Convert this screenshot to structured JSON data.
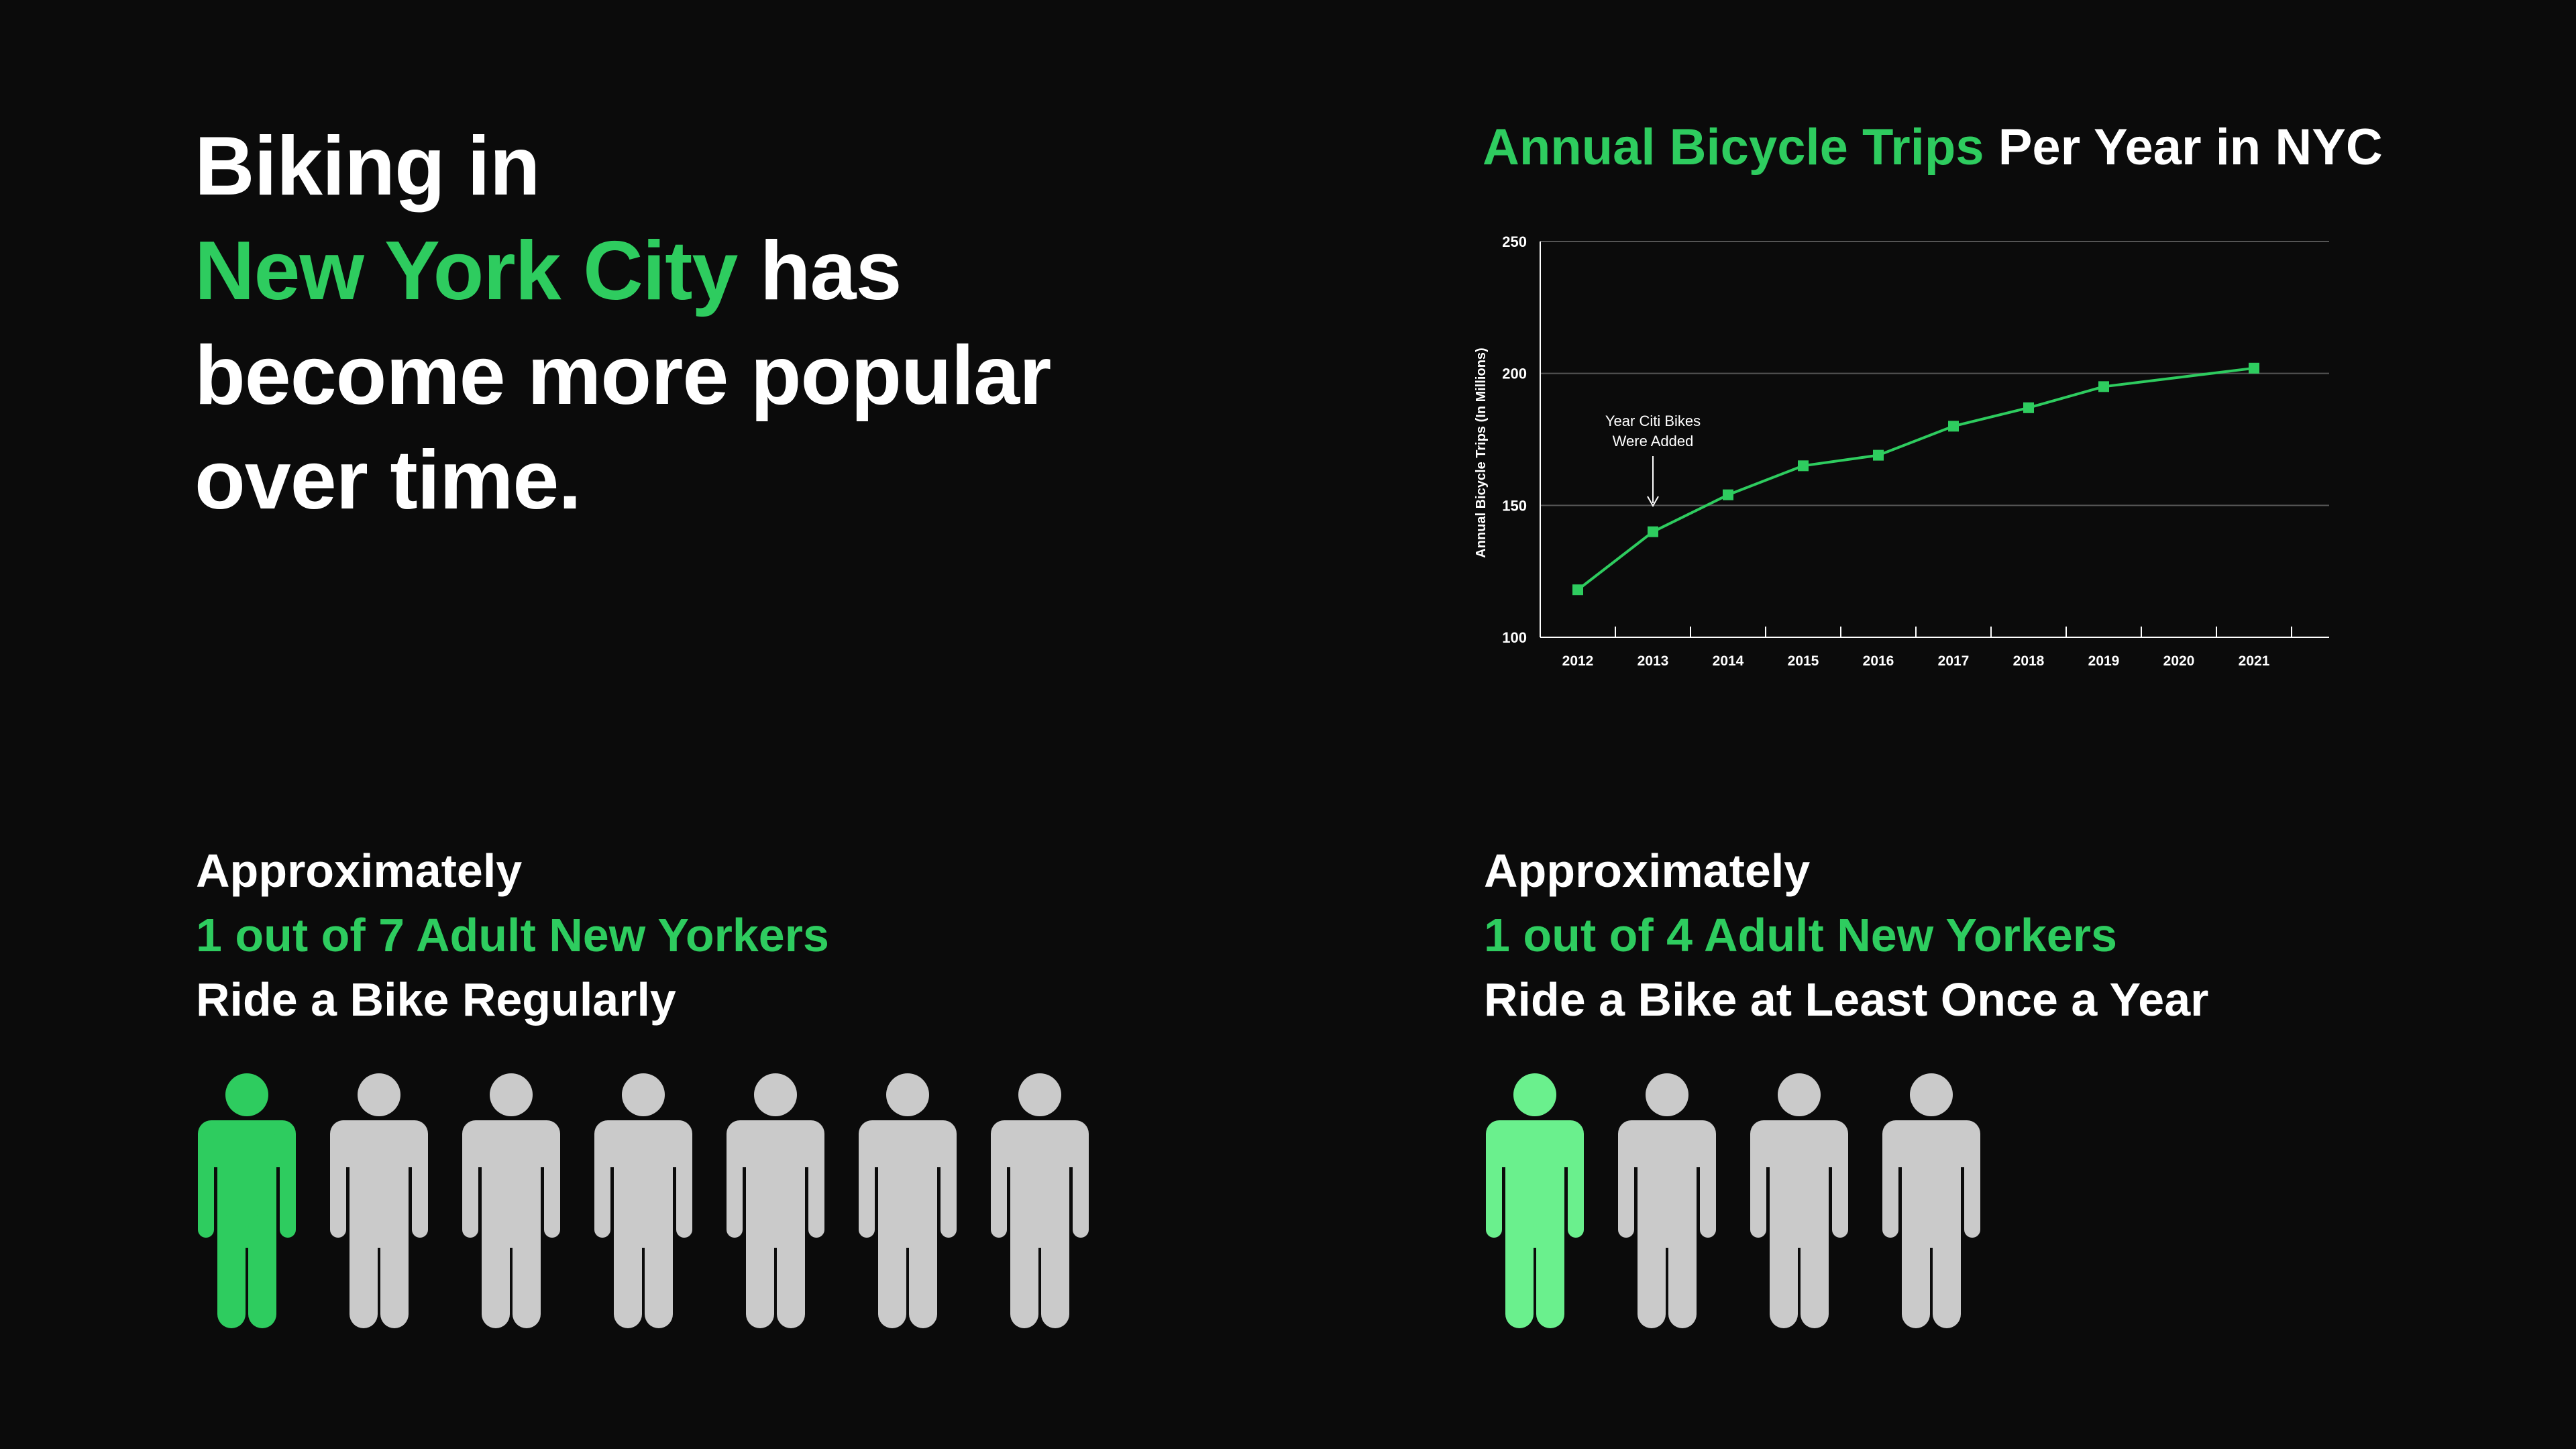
{
  "headline": {
    "line1": "Biking in",
    "city": "New York City",
    "after_city": " has",
    "line3": "become more popular",
    "line4": "over time."
  },
  "chart_title": {
    "highlight": "Annual Bicycle Trips",
    "rest": " Per Year in NYC"
  },
  "chart_data": {
    "type": "line",
    "title": "Annual Bicycle Trips Per Year in NYC",
    "xlabel": "",
    "ylabel": "Annual Bicycle Trips (In Millions)",
    "categories": [
      "2012",
      "2013",
      "2014",
      "2015",
      "2016",
      "2017",
      "2018",
      "2019",
      "2020",
      "2021"
    ],
    "series": [
      {
        "x": [
          "2012",
          "2013",
          "2014",
          "2015",
          "2016",
          "2017",
          "2018",
          "2019",
          "2021"
        ],
        "values": [
          118,
          140,
          154,
          165,
          169,
          180,
          187,
          195,
          202
        ]
      }
    ],
    "ylim": [
      100,
      250
    ],
    "yticks": [
      100,
      150,
      200,
      250
    ],
    "grid": "horizontal",
    "annotation": {
      "line1": "Year Citi Bikes",
      "line2": "Were Added",
      "x": "2013"
    },
    "colors": {
      "line": "#2ecc5f",
      "axis": "#ffffff",
      "grid": "#555555"
    }
  },
  "stats": [
    {
      "line1": "Approximately",
      "line2": "1 out of 7 Adult New Yorkers",
      "line3": "Ride a Bike Regularly",
      "people_total": 7,
      "people_highlighted": 1,
      "highlight_color": "#2ecc5f"
    },
    {
      "line1": "Approximately",
      "line2": "1 out of 4 Adult New Yorkers",
      "line3": "Ride a Bike at Least Once a Year",
      "people_total": 4,
      "people_highlighted": 1,
      "highlight_color": "#6af08d"
    }
  ],
  "colors": {
    "background": "#0b0b0b",
    "accent": "#2ecc5f",
    "person_inactive": "#cacaca",
    "text": "#ffffff"
  }
}
